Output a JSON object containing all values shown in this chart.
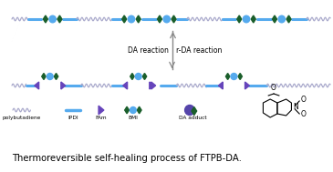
{
  "title": "Thermoreversible self-healing process of FTPB-DA.",
  "title_fontsize": 7.2,
  "bg_color": "#ffffff",
  "wavy_color": "#aaaacc",
  "pb_line_color": "#55aaee",
  "ipdi_color": "#55aaee",
  "fam_color": "#6644bb",
  "green_color": "#1a5e2a",
  "blue_color": "#55aaee",
  "da_adduct_purple": "#5544aa",
  "arrow_color": "#888888",
  "text_color": "#000000",
  "da_text": "DA reaction",
  "rda_text": "r-DA reaction",
  "legend_labels": [
    "polybutadiene",
    "IPDI",
    "FAm",
    "BMI",
    "DA adduct"
  ]
}
